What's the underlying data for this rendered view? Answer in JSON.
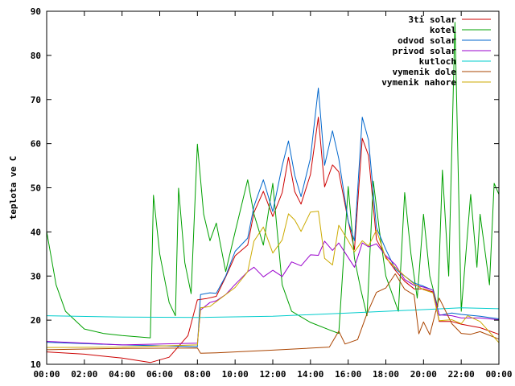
{
  "chart_data": {
    "type": "line",
    "ylabel": "teplota ve C",
    "xlabel": "",
    "title": "",
    "xlim": [
      "00:00",
      "24:00"
    ],
    "ylim": [
      10,
      90
    ],
    "xticks": [
      "00:00",
      "02:00",
      "04:00",
      "06:00",
      "08:00",
      "10:00",
      "12:00",
      "14:00",
      "16:00",
      "18:00",
      "20:00",
      "22:00",
      "00:00"
    ],
    "yticks": [
      10,
      20,
      30,
      40,
      50,
      60,
      70,
      80,
      90
    ],
    "legend_position": "top-right",
    "grid": false,
    "series": [
      {
        "name": "3ti solar",
        "color": "#cc0000",
        "points": [
          [
            "00:00",
            12.8
          ],
          [
            "02:00",
            12.3
          ],
          [
            "04:00",
            11.4
          ],
          [
            "05:30",
            10.4
          ],
          [
            "06:30",
            11.6
          ],
          [
            "07:30",
            16.5
          ],
          [
            "08:00",
            24.6
          ],
          [
            "08:30",
            24.9
          ],
          [
            "09:00",
            25.4
          ],
          [
            "09:30",
            29.8
          ],
          [
            "10:00",
            34.6
          ],
          [
            "10:40",
            37.0
          ],
          [
            "11:00",
            44.4
          ],
          [
            "11:30",
            49.2
          ],
          [
            "12:00",
            43.5
          ],
          [
            "12:30",
            48.9
          ],
          [
            "12:50",
            56.9
          ],
          [
            "13:10",
            49.1
          ],
          [
            "13:30",
            46.3
          ],
          [
            "14:00",
            53.0
          ],
          [
            "14:25",
            66.0
          ],
          [
            "14:45",
            50.2
          ],
          [
            "15:10",
            55.2
          ],
          [
            "15:30",
            53.6
          ],
          [
            "16:00",
            42.5
          ],
          [
            "16:20",
            36.0
          ],
          [
            "16:45",
            61.2
          ],
          [
            "17:05",
            57.3
          ],
          [
            "17:30",
            38.3
          ],
          [
            "18:00",
            34.3
          ],
          [
            "18:30",
            31.3
          ],
          [
            "19:00",
            28.8
          ],
          [
            "19:30",
            27.1
          ],
          [
            "20:00",
            27.1
          ],
          [
            "20:30",
            26.4
          ],
          [
            "20:50",
            19.7
          ],
          [
            "21:30",
            19.7
          ],
          [
            "22:00",
            19.1
          ],
          [
            "23:00",
            18.3
          ],
          [
            "24:00",
            16.8
          ]
        ]
      },
      {
        "name": "kotel",
        "color": "#00a000",
        "points": [
          [
            "00:00",
            40.1
          ],
          [
            "00:30",
            28.0
          ],
          [
            "01:00",
            22.0
          ],
          [
            "02:00",
            18.0
          ],
          [
            "03:00",
            17.0
          ],
          [
            "04:00",
            16.5
          ],
          [
            "05:30",
            16.0
          ],
          [
            "05:40",
            48.3
          ],
          [
            "06:00",
            35.0
          ],
          [
            "06:30",
            24.0
          ],
          [
            "06:50",
            21.0
          ],
          [
            "07:00",
            49.9
          ],
          [
            "07:20",
            33.0
          ],
          [
            "07:40",
            26.0
          ],
          [
            "08:00",
            59.9
          ],
          [
            "08:20",
            44.0
          ],
          [
            "08:40",
            38.0
          ],
          [
            "09:00",
            42.0
          ],
          [
            "09:30",
            31.0
          ],
          [
            "10:00",
            40.0
          ],
          [
            "10:40",
            51.8
          ],
          [
            "11:00",
            44.0
          ],
          [
            "11:30",
            37.0
          ],
          [
            "12:00",
            51.0
          ],
          [
            "12:30",
            28.0
          ],
          [
            "13:00",
            22.0
          ],
          [
            "14:00",
            19.5
          ],
          [
            "15:00",
            17.8
          ],
          [
            "15:30",
            17.0
          ],
          [
            "16:00",
            50.3
          ],
          [
            "16:20",
            34.0
          ],
          [
            "16:40",
            27.0
          ],
          [
            "17:00",
            21.0
          ],
          [
            "17:20",
            51.5
          ],
          [
            "17:40",
            40.0
          ],
          [
            "18:00",
            30.0
          ],
          [
            "18:40",
            22.0
          ],
          [
            "19:00",
            48.9
          ],
          [
            "19:20",
            35.0
          ],
          [
            "19:40",
            25.0
          ],
          [
            "20:00",
            44.0
          ],
          [
            "20:20",
            30.0
          ],
          [
            "20:45",
            23.0
          ],
          [
            "21:00",
            54.0
          ],
          [
            "21:20",
            30.0
          ],
          [
            "21:40",
            87.5
          ],
          [
            "22:00",
            22.0
          ],
          [
            "22:30",
            48.5
          ],
          [
            "22:50",
            32.0
          ],
          [
            "23:00",
            44.0
          ],
          [
            "23:30",
            28.0
          ],
          [
            "23:45",
            51.0
          ],
          [
            "24:00",
            48.5
          ]
        ]
      },
      {
        "name": "odvod solar",
        "color": "#0066cc",
        "points": [
          [
            "00:00",
            15.0
          ],
          [
            "04:00",
            14.4
          ],
          [
            "08:00",
            14.0
          ],
          [
            "08:10",
            25.8
          ],
          [
            "08:40",
            26.2
          ],
          [
            "09:00",
            26.1
          ],
          [
            "09:30",
            30.0
          ],
          [
            "10:00",
            35.6
          ],
          [
            "10:40",
            38.6
          ],
          [
            "11:00",
            45.8
          ],
          [
            "11:30",
            51.8
          ],
          [
            "12:00",
            44.6
          ],
          [
            "12:30",
            55.0
          ],
          [
            "12:50",
            60.6
          ],
          [
            "13:10",
            52.8
          ],
          [
            "13:30",
            48.0
          ],
          [
            "14:00",
            56.7
          ],
          [
            "14:25",
            72.6
          ],
          [
            "14:45",
            55.1
          ],
          [
            "15:10",
            62.9
          ],
          [
            "15:30",
            56.6
          ],
          [
            "16:00",
            42.5
          ],
          [
            "16:20",
            38.0
          ],
          [
            "16:45",
            66.0
          ],
          [
            "17:05",
            60.8
          ],
          [
            "17:30",
            41.0
          ],
          [
            "18:00",
            36.0
          ],
          [
            "18:30",
            31.6
          ],
          [
            "19:00",
            30.0
          ],
          [
            "19:30",
            28.4
          ],
          [
            "20:00",
            27.7
          ],
          [
            "20:30",
            26.8
          ],
          [
            "20:50",
            21.1
          ],
          [
            "21:30",
            21.6
          ],
          [
            "22:00",
            21.3
          ],
          [
            "23:00",
            20.9
          ],
          [
            "24:00",
            20.3
          ]
        ]
      },
      {
        "name": "privod solar",
        "color": "#9900cc",
        "points": [
          [
            "00:00",
            15.2
          ],
          [
            "04:00",
            14.4
          ],
          [
            "08:00",
            14.8
          ],
          [
            "08:10",
            22.3
          ],
          [
            "08:40",
            24.0
          ],
          [
            "09:00",
            24.4
          ],
          [
            "09:30",
            25.8
          ],
          [
            "10:00",
            28.1
          ],
          [
            "10:40",
            31.0
          ],
          [
            "11:00",
            32.0
          ],
          [
            "11:30",
            29.8
          ],
          [
            "12:00",
            31.3
          ],
          [
            "12:30",
            29.9
          ],
          [
            "13:00",
            33.2
          ],
          [
            "13:30",
            32.3
          ],
          [
            "14:00",
            34.8
          ],
          [
            "14:25",
            34.7
          ],
          [
            "14:45",
            37.9
          ],
          [
            "15:10",
            35.8
          ],
          [
            "15:30",
            37.5
          ],
          [
            "16:00",
            34.2
          ],
          [
            "16:20",
            32.0
          ],
          [
            "16:45",
            37.5
          ],
          [
            "17:05",
            36.6
          ],
          [
            "17:30",
            37.3
          ],
          [
            "18:00",
            34.6
          ],
          [
            "18:30",
            32.6
          ],
          [
            "19:00",
            29.2
          ],
          [
            "19:30",
            27.9
          ],
          [
            "20:00",
            27.5
          ],
          [
            "20:30",
            26.8
          ],
          [
            "20:50",
            21.2
          ],
          [
            "21:30",
            21.0
          ],
          [
            "22:00",
            20.5
          ],
          [
            "23:00",
            20.5
          ],
          [
            "24:00",
            20.1
          ]
        ]
      },
      {
        "name": "kutloch",
        "color": "#00cccc",
        "points": [
          [
            "00:00",
            21.0
          ],
          [
            "04:00",
            20.7
          ],
          [
            "08:00",
            20.6
          ],
          [
            "12:00",
            20.9
          ],
          [
            "16:00",
            21.6
          ],
          [
            "20:00",
            22.4
          ],
          [
            "22:00",
            22.8
          ],
          [
            "24:00",
            22.6
          ]
        ]
      },
      {
        "name": "vymenik dole",
        "color": "#aa4400",
        "points": [
          [
            "00:00",
            13.3
          ],
          [
            "04:00",
            13.6
          ],
          [
            "08:00",
            13.7
          ],
          [
            "08:10",
            12.5
          ],
          [
            "09:00",
            12.6
          ],
          [
            "12:00",
            13.2
          ],
          [
            "15:00",
            13.9
          ],
          [
            "15:30",
            17.5
          ],
          [
            "15:50",
            14.6
          ],
          [
            "16:30",
            15.6
          ],
          [
            "17:00",
            21.5
          ],
          [
            "17:30",
            26.3
          ],
          [
            "18:00",
            27.3
          ],
          [
            "18:30",
            30.5
          ],
          [
            "19:00",
            27.0
          ],
          [
            "19:30",
            25.7
          ],
          [
            "19:45",
            16.9
          ],
          [
            "20:00",
            19.6
          ],
          [
            "20:20",
            16.7
          ],
          [
            "20:50",
            25.0
          ],
          [
            "21:30",
            19.2
          ],
          [
            "22:00",
            17.0
          ],
          [
            "22:30",
            16.8
          ],
          [
            "23:00",
            17.4
          ],
          [
            "24:00",
            15.7
          ]
        ]
      },
      {
        "name": "vymenik nahore",
        "color": "#ccaa00",
        "points": [
          [
            "00:00",
            13.8
          ],
          [
            "04:00",
            13.9
          ],
          [
            "08:00",
            14.4
          ],
          [
            "08:10",
            22.8
          ],
          [
            "08:40",
            23.1
          ],
          [
            "09:00",
            24.2
          ],
          [
            "10:00",
            27.4
          ],
          [
            "10:40",
            31.0
          ],
          [
            "11:00",
            37.9
          ],
          [
            "11:30",
            41.1
          ],
          [
            "12:00",
            35.2
          ],
          [
            "12:30",
            38.2
          ],
          [
            "12:50",
            44.1
          ],
          [
            "13:10",
            42.7
          ],
          [
            "13:30",
            40.1
          ],
          [
            "14:00",
            44.5
          ],
          [
            "14:25",
            44.7
          ],
          [
            "14:45",
            34.0
          ],
          [
            "15:10",
            32.5
          ],
          [
            "15:30",
            41.5
          ],
          [
            "16:00",
            38.0
          ],
          [
            "16:20",
            35.5
          ],
          [
            "16:45",
            38.0
          ],
          [
            "17:05",
            36.8
          ],
          [
            "17:30",
            40.4
          ],
          [
            "18:00",
            34.0
          ],
          [
            "18:30",
            32.0
          ],
          [
            "19:00",
            30.0
          ],
          [
            "19:30",
            28.2
          ],
          [
            "20:00",
            26.9
          ],
          [
            "20:30",
            26.2
          ],
          [
            "20:50",
            19.9
          ],
          [
            "21:30",
            20.1
          ],
          [
            "22:00",
            19.2
          ],
          [
            "22:20",
            21.0
          ],
          [
            "23:00",
            19.7
          ],
          [
            "24:00",
            14.9
          ]
        ]
      }
    ]
  }
}
